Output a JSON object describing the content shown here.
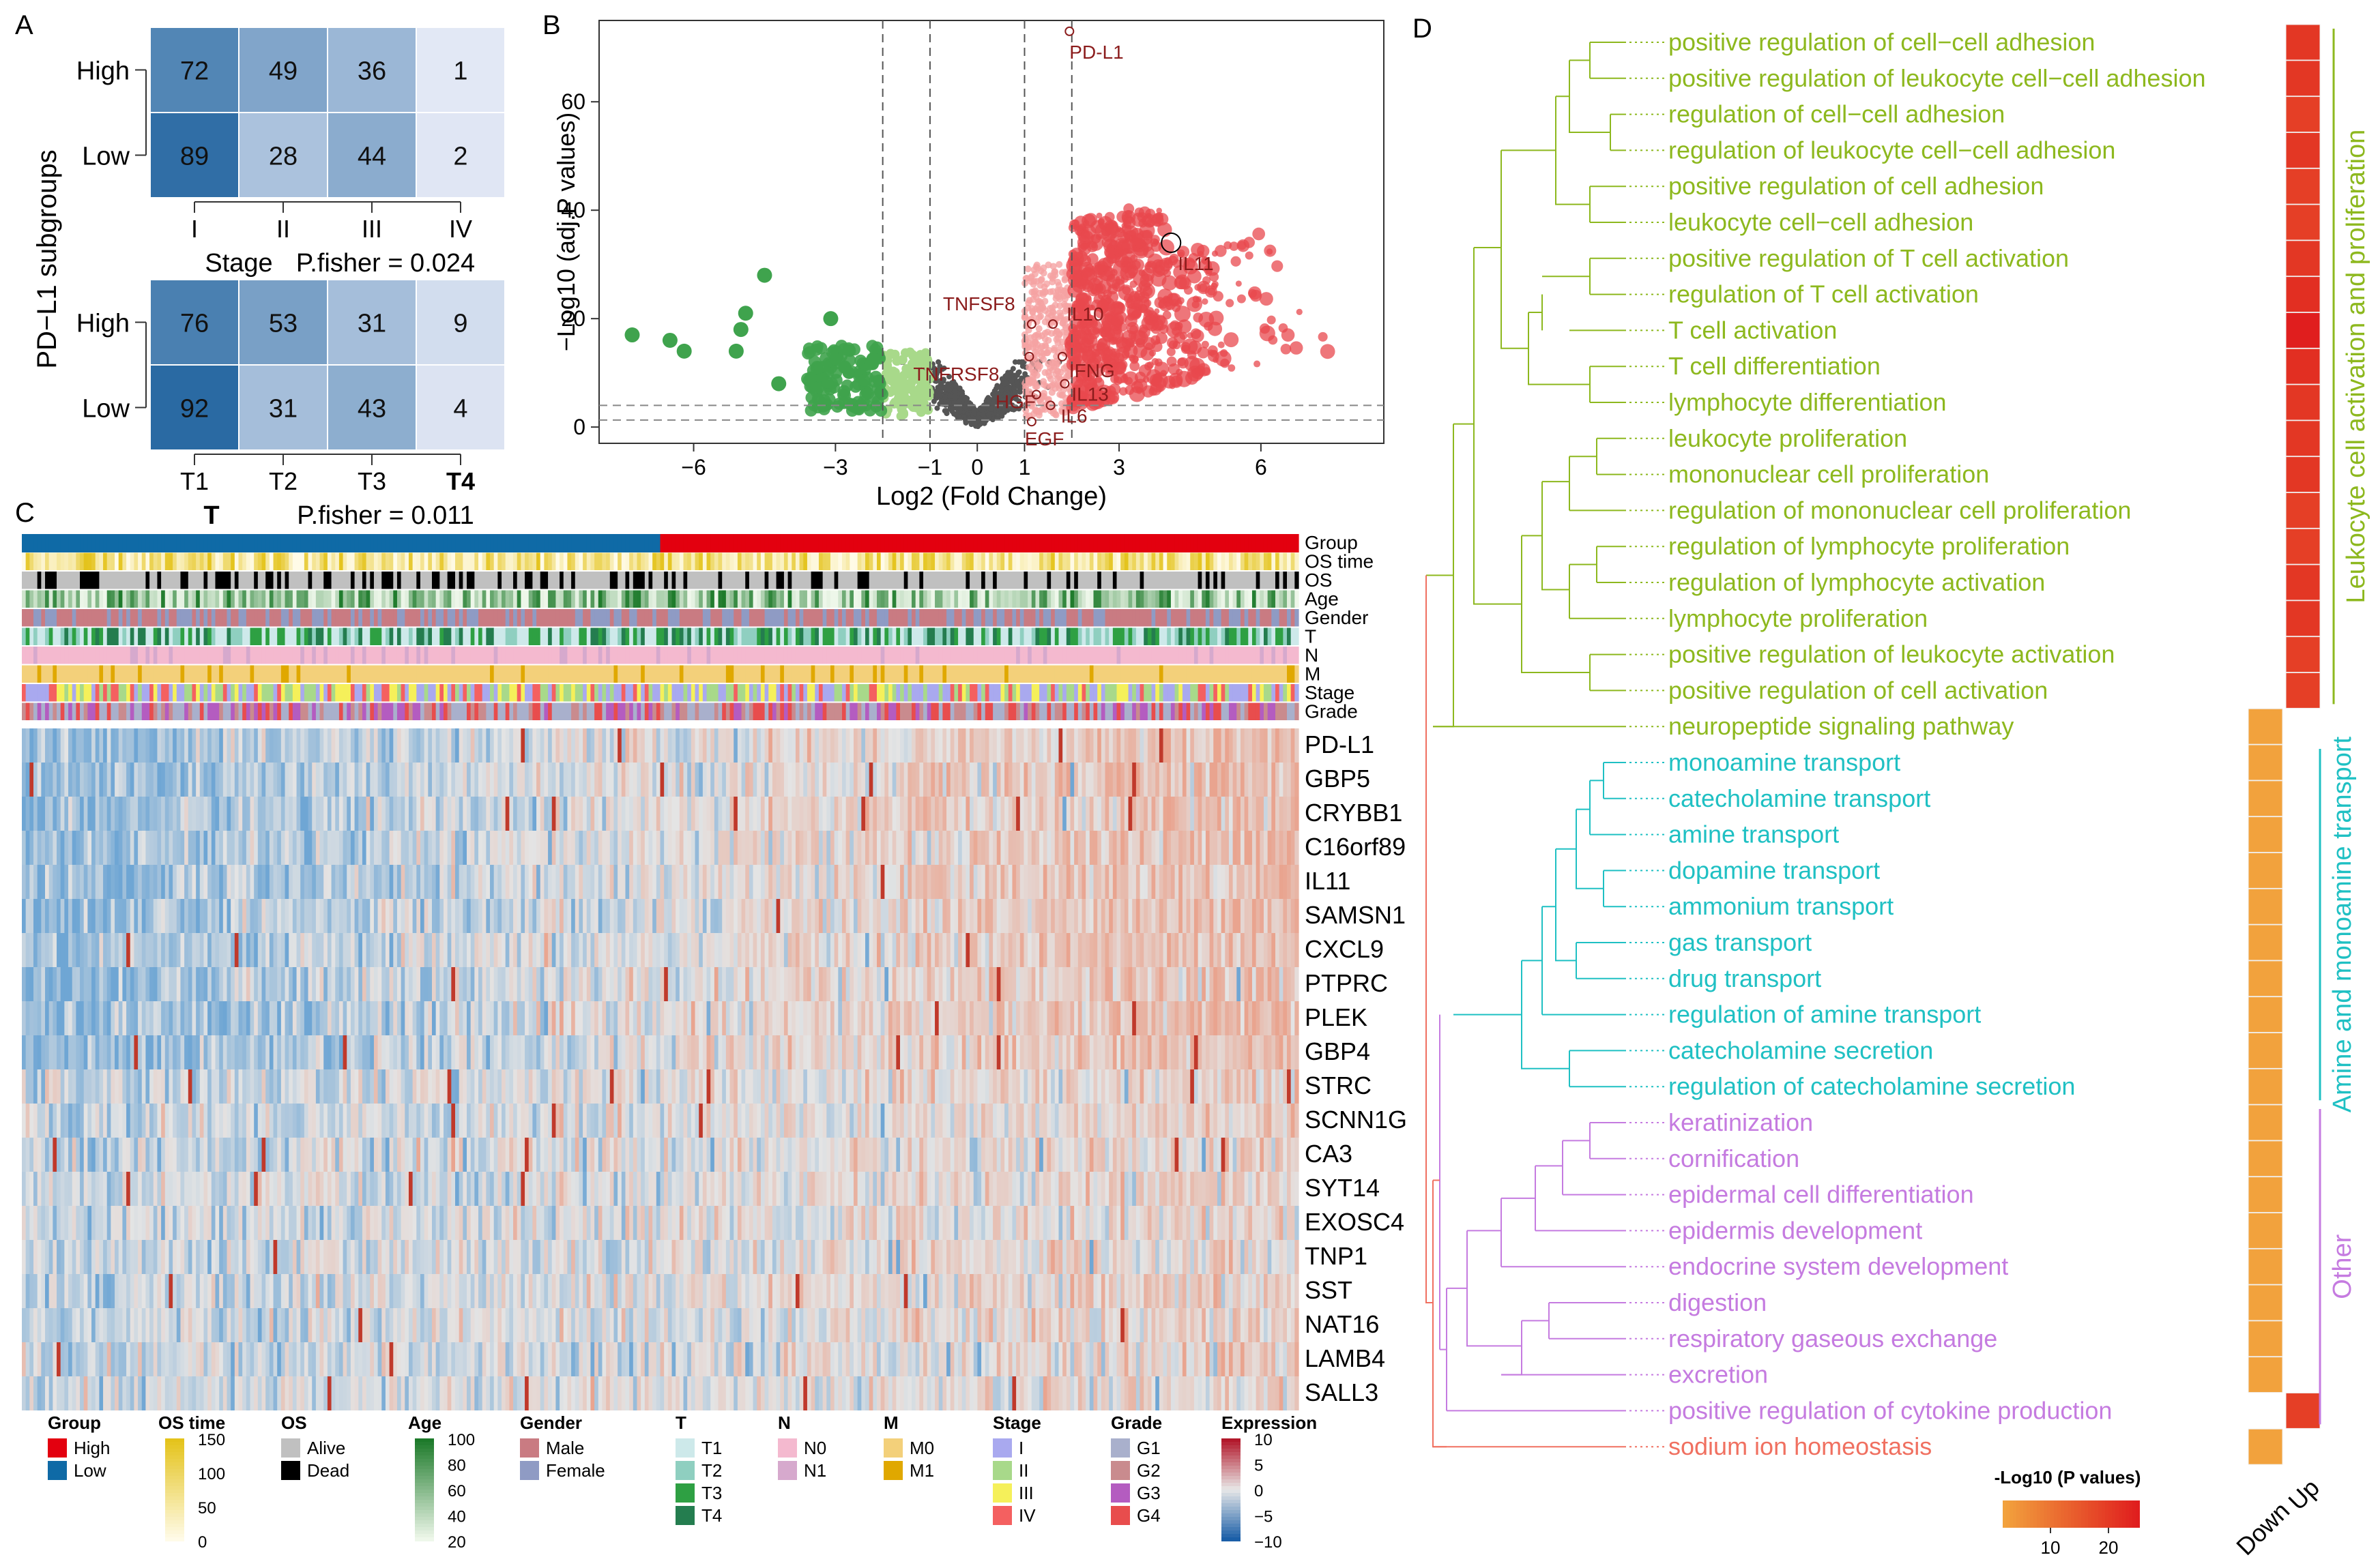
{
  "chart_data": [
    {
      "panel": "A",
      "type": "heatmap",
      "ylabel": "PD−L1 subgroups",
      "tables": [
        {
          "rows": [
            "High",
            "Low"
          ],
          "columns": [
            "I",
            "II",
            "III",
            "IV"
          ],
          "values": [
            [
              72,
              49,
              36,
              1
            ],
            [
              89,
              28,
              44,
              2
            ]
          ],
          "xlabel": "Stage",
          "pvalue": "P.fisher = 0.024"
        },
        {
          "rows": [
            "High",
            "Low"
          ],
          "columns": [
            "T1",
            "T2",
            "T3",
            "T4"
          ],
          "values": [
            [
              76,
              53,
              31,
              9
            ],
            [
              92,
              31,
              43,
              4
            ]
          ],
          "xlabel": "T",
          "pvalue": "P.fisher = 0.011"
        }
      ]
    },
    {
      "panel": "B",
      "type": "scatter",
      "title": "",
      "xlabel": "Log2 (Fold Change)",
      "ylabel": "−Log10 (adj.P values)",
      "xlim": [
        -8,
        8.6
      ],
      "ylim": [
        -3,
        75
      ],
      "xticks": [
        -6,
        -3,
        -1,
        0,
        1,
        3,
        6
      ],
      "yticks": [
        0,
        20,
        40,
        60
      ],
      "vlines": [
        -2,
        -1,
        1,
        2
      ],
      "hlines": [
        1.3,
        4
      ],
      "labeled_genes": [
        {
          "gene": "PD-L1",
          "x": 1.95,
          "y": 73
        },
        {
          "gene": "IL11",
          "x": 4.1,
          "y": 34
        },
        {
          "gene": "TNFSF8",
          "x": 1.15,
          "y": 19
        },
        {
          "gene": "IL10",
          "x": 1.6,
          "y": 19
        },
        {
          "gene": "TNFRSF8",
          "x": 1.1,
          "y": 13
        },
        {
          "gene": "IFNG",
          "x": 1.8,
          "y": 13
        },
        {
          "gene": "IL13",
          "x": 1.85,
          "y": 8
        },
        {
          "gene": "HGF",
          "x": 1.25,
          "y": 6
        },
        {
          "gene": "IL6",
          "x": 1.55,
          "y": 4
        },
        {
          "gene": "EGF",
          "x": 1.15,
          "y": 1
        }
      ],
      "series": [
        {
          "name": "down_strong",
          "color": "#3fa34d"
        },
        {
          "name": "down_weak",
          "color": "#a8d98a"
        },
        {
          "name": "not_significant",
          "color": "#555555"
        },
        {
          "name": "up_weak",
          "color": "#f5a3a3"
        },
        {
          "name": "up_strong",
          "color": "#e8484d"
        }
      ]
    },
    {
      "panel": "C",
      "type": "heatmap",
      "annotation_tracks": [
        "Group",
        "OS time",
        "OS",
        "Age",
        "Gender",
        "T",
        "N",
        "M",
        "Stage",
        "Grade"
      ],
      "genes": [
        "PD-L1",
        "GBP5",
        "CRYBB1",
        "C16orf89",
        "IL11",
        "SAMSN1",
        "CXCL9",
        "PTPRC",
        "PLEK",
        "GBP4",
        "STRC",
        "SCNN1G",
        "CA3",
        "SYT14",
        "EXOSC4",
        "TNP1",
        "SST",
        "NAT16",
        "LAMB4",
        "SALL3"
      ],
      "legends": [
        {
          "title": "Group",
          "items": [
            {
              "label": "High",
              "color": "#e3000f"
            },
            {
              "label": "Low",
              "color": "#0f6aa6"
            }
          ]
        },
        {
          "title": "OS time",
          "gradient": [
            "#fffbe8",
            "#e4c31b"
          ],
          "ticks": [
            "150",
            "100",
            "50",
            "0"
          ]
        },
        {
          "title": "OS",
          "items": [
            {
              "label": "Alive",
              "color": "#c0c0c0"
            },
            {
              "label": "Dead",
              "color": "#000000"
            }
          ]
        },
        {
          "title": "Age",
          "gradient": [
            "#eef7ea",
            "#1d7a2a"
          ],
          "ticks": [
            "100",
            "80",
            "60",
            "40",
            "20"
          ]
        },
        {
          "title": "Gender",
          "items": [
            {
              "label": "Male",
              "color": "#c97b82"
            },
            {
              "label": "Female",
              "color": "#8f9bc4"
            }
          ]
        },
        {
          "title": "T",
          "items": [
            {
              "label": "T1",
              "color": "#cde9ea"
            },
            {
              "label": "T2",
              "color": "#8fcfc0"
            },
            {
              "label": "T3",
              "color": "#2ea043"
            },
            {
              "label": "T4",
              "color": "#247d4f"
            }
          ]
        },
        {
          "title": "N",
          "items": [
            {
              "label": "N0",
              "color": "#f4b9cf"
            },
            {
              "label": "N1",
              "color": "#d6a9cd"
            }
          ]
        },
        {
          "title": "M",
          "items": [
            {
              "label": "M0",
              "color": "#f3d07a"
            },
            {
              "label": "M1",
              "color": "#e0a800"
            }
          ]
        },
        {
          "title": "Stage",
          "items": [
            {
              "label": "I",
              "color": "#a9a9ef"
            },
            {
              "label": "II",
              "color": "#a8d98a"
            },
            {
              "label": "III",
              "color": "#f5f05a"
            },
            {
              "label": "IV",
              "color": "#f46060"
            }
          ]
        },
        {
          "title": "Grade",
          "items": [
            {
              "label": "G1",
              "color": "#a9b0cc"
            },
            {
              "label": "G2",
              "color": "#c98b8e"
            },
            {
              "label": "G3",
              "color": "#b45cc0"
            },
            {
              "label": "G4",
              "color": "#e84d4d"
            }
          ]
        },
        {
          "title": "Expression",
          "gradient": [
            "#1b5fa8",
            "#e8e8e8",
            "#b2182b"
          ],
          "ticks": [
            "10",
            "5",
            "0",
            "−5",
            "−10"
          ]
        }
      ]
    },
    {
      "panel": "D",
      "type": "table",
      "legend_title": "-Log10 (P values)",
      "legend_ticks": [
        "10",
        "20"
      ],
      "columns": [
        "Down",
        "Up"
      ],
      "clusters": [
        {
          "label": "Leukocyte cell activation and proliferation",
          "color": "#8db81e"
        },
        {
          "label": "Amine and monoamine transport",
          "color": "#1fc0c3"
        },
        {
          "label": "Other",
          "color": "#c57be0"
        }
      ],
      "terms": [
        {
          "name": "positive regulation of cell−cell adhesion",
          "cluster": 0,
          "up": 21
        },
        {
          "name": "positive regulation of leukocyte cell−cell adhesion",
          "cluster": 0,
          "up": 21
        },
        {
          "name": "regulation of cell−cell adhesion",
          "cluster": 0,
          "up": 20
        },
        {
          "name": "regulation of leukocyte cell−cell adhesion",
          "cluster": 0,
          "up": 21
        },
        {
          "name": "positive regulation of cell adhesion",
          "cluster": 0,
          "up": 20
        },
        {
          "name": "leukocyte cell−cell adhesion",
          "cluster": 0,
          "up": 20
        },
        {
          "name": "positive regulation of T cell activation",
          "cluster": 0,
          "up": 21
        },
        {
          "name": "regulation of T cell activation",
          "cluster": 0,
          "up": 22
        },
        {
          "name": "T cell activation",
          "cluster": 0,
          "up": 24
        },
        {
          "name": "T cell differentiation",
          "cluster": 0,
          "up": 22
        },
        {
          "name": "lymphocyte differentiation",
          "cluster": 0,
          "up": 21
        },
        {
          "name": "leukocyte proliferation",
          "cluster": 0,
          "up": 21
        },
        {
          "name": "mononuclear cell proliferation",
          "cluster": 0,
          "up": 21
        },
        {
          "name": "regulation of mononuclear cell proliferation",
          "cluster": 0,
          "up": 20
        },
        {
          "name": "regulation of lymphocyte proliferation",
          "cluster": 0,
          "up": 20
        },
        {
          "name": "regulation of lymphocyte activation",
          "cluster": 0,
          "up": 21
        },
        {
          "name": "lymphocyte proliferation",
          "cluster": 0,
          "up": 21
        },
        {
          "name": "positive regulation of leukocyte activation",
          "cluster": 0,
          "up": 20
        },
        {
          "name": "positive regulation of cell activation",
          "cluster": 0,
          "up": 20
        },
        {
          "name": "neuropeptide signaling pathway",
          "cluster": 0,
          "down": 8
        },
        {
          "name": "monoamine transport",
          "cluster": 1,
          "down": 8
        },
        {
          "name": "catecholamine transport",
          "cluster": 1,
          "down": 8
        },
        {
          "name": "amine transport",
          "cluster": 1,
          "down": 8
        },
        {
          "name": "dopamine transport",
          "cluster": 1,
          "down": 8
        },
        {
          "name": "ammonium transport",
          "cluster": 1,
          "down": 8
        },
        {
          "name": "gas transport",
          "cluster": 1,
          "down": 8
        },
        {
          "name": "drug transport",
          "cluster": 1,
          "down": 8
        },
        {
          "name": "regulation of amine transport",
          "cluster": 1,
          "down": 8
        },
        {
          "name": "catecholamine secretion",
          "cluster": 1,
          "down": 8
        },
        {
          "name": "regulation of catecholamine secretion",
          "cluster": 1,
          "down": 8
        },
        {
          "name": "keratinization",
          "cluster": 2,
          "down": 8
        },
        {
          "name": "cornification",
          "cluster": 2,
          "down": 8
        },
        {
          "name": "epidermal cell differentiation",
          "cluster": 2,
          "down": 8
        },
        {
          "name": "epidermis development",
          "cluster": 2,
          "down": 8
        },
        {
          "name": "endocrine system development",
          "cluster": 2,
          "down": 8
        },
        {
          "name": "digestion",
          "cluster": 2,
          "down": 8
        },
        {
          "name": "respiratory gaseous exchange",
          "cluster": 2,
          "down": 8
        },
        {
          "name": "excretion",
          "cluster": 2,
          "down": 8
        },
        {
          "name": "positive regulation of cytokine production",
          "cluster": 2,
          "up": 20
        },
        {
          "name": "sodium ion homeostasis",
          "cluster": 3,
          "down": 8
        }
      ],
      "extra_colors": {
        "sodium": "#f07060"
      }
    }
  ],
  "panel_letters": [
    "A",
    "B",
    "C",
    "D"
  ]
}
